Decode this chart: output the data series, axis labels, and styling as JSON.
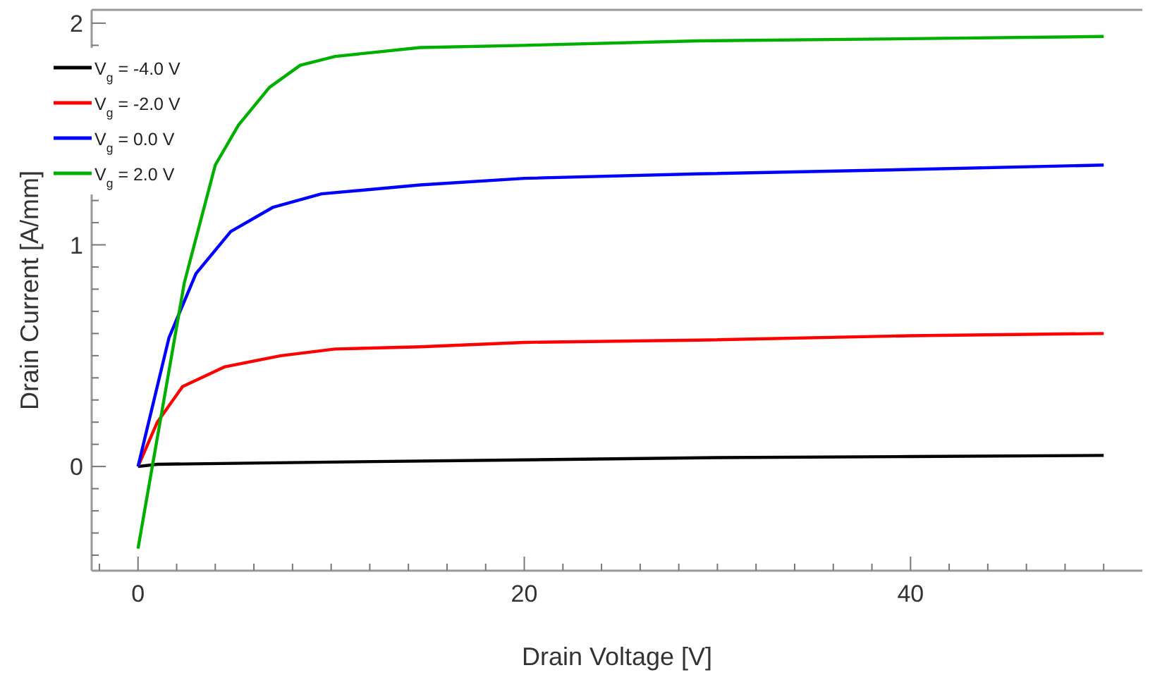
{
  "chart_data": {
    "type": "line",
    "xlabel": "Drain Voltage [V]",
    "ylabel": "Drain Current [A/mm]",
    "xlim": [
      -2.4,
      52
    ],
    "ylim": [
      -0.47,
      2.06
    ],
    "xticks": [
      {
        "value": -2,
        "label": null
      },
      0,
      {
        "value": 2,
        "label": null
      },
      {
        "value": 4,
        "label": null
      },
      {
        "value": 6,
        "label": null
      },
      {
        "value": 8,
        "label": null
      },
      {
        "value": 10,
        "label": null
      },
      {
        "value": 12,
        "label": null
      },
      {
        "value": 14,
        "label": null
      },
      {
        "value": 16,
        "label": null
      },
      {
        "value": 18,
        "label": null
      },
      20,
      {
        "value": 22,
        "label": null
      },
      {
        "value": 24,
        "label": null
      },
      {
        "value": 26,
        "label": null
      },
      {
        "value": 28,
        "label": null
      },
      {
        "value": 30,
        "label": null
      },
      {
        "value": 32,
        "label": null
      },
      {
        "value": 34,
        "label": null
      },
      {
        "value": 36,
        "label": null
      },
      {
        "value": 38,
        "label": null
      },
      40,
      {
        "value": 42,
        "label": null
      },
      {
        "value": 44,
        "label": null
      },
      {
        "value": 46,
        "label": null
      },
      {
        "value": 48,
        "label": null
      },
      {
        "value": 50,
        "label": null
      }
    ],
    "yticks": [
      {
        "value": -0.4,
        "label": null
      },
      {
        "value": -0.3,
        "label": null
      },
      {
        "value": -0.2,
        "label": null
      },
      {
        "value": -0.1,
        "label": null
      },
      0,
      {
        "value": 0.1,
        "label": null
      },
      {
        "value": 0.2,
        "label": null
      },
      {
        "value": 0.3,
        "label": null
      },
      {
        "value": 0.4,
        "label": null
      },
      {
        "value": 0.5,
        "label": null
      },
      {
        "value": 0.6,
        "label": null
      },
      {
        "value": 0.7,
        "label": null
      },
      {
        "value": 0.8,
        "label": null
      },
      {
        "value": 0.9,
        "label": null
      },
      1,
      {
        "value": 1.1,
        "label": null
      },
      {
        "value": 1.2,
        "label": null
      },
      {
        "value": 1.3,
        "label": null
      },
      {
        "value": 1.4,
        "label": null
      },
      {
        "value": 1.5,
        "label": null
      },
      {
        "value": 1.6,
        "label": null
      },
      {
        "value": 1.7,
        "label": null
      },
      {
        "value": 1.8,
        "label": null
      },
      {
        "value": 1.9,
        "label": null
      },
      2
    ],
    "grid": false,
    "legend": "top left",
    "marker": "none",
    "line_style": "solid",
    "series": [
      {
        "name": "V$_{g}$ = -4.0 V",
        "color": "#000000",
        "x": [
          0,
          1,
          10,
          20,
          30,
          40,
          50
        ],
        "values": [
          0,
          0.01,
          0.02,
          0.03,
          0.04,
          0.045,
          0.05
        ]
      },
      {
        "name": "V$_{g}$ = -2.0 V",
        "color": "#ff0000",
        "x": [
          0,
          1,
          2.3,
          4.5,
          7.4,
          10.2,
          14.6,
          20,
          29,
          40,
          50
        ],
        "values": [
          0,
          0.2,
          0.36,
          0.45,
          0.5,
          0.53,
          0.54,
          0.56,
          0.57,
          0.59,
          0.6
        ]
      },
      {
        "name": "V$_{g}$ = 0.0 V",
        "color": "#0000ff",
        "x": [
          0,
          1.6,
          3,
          4.8,
          7,
          9.5,
          14.6,
          20,
          29,
          40,
          50
        ],
        "values": [
          0,
          0.58,
          0.87,
          1.06,
          1.17,
          1.23,
          1.27,
          1.3,
          1.32,
          1.34,
          1.36
        ]
      },
      {
        "name": "V$_{g}$ = 2.0 V",
        "color": "#00b000",
        "x": [
          0,
          2.4,
          4,
          5.2,
          6.8,
          8.4,
          10.2,
          14.6,
          20,
          29,
          40,
          50
        ],
        "values": [
          -0.37,
          0.83,
          1.36,
          1.54,
          1.71,
          1.81,
          1.85,
          1.89,
          1.9,
          1.92,
          1.93,
          1.94
        ]
      }
    ]
  }
}
